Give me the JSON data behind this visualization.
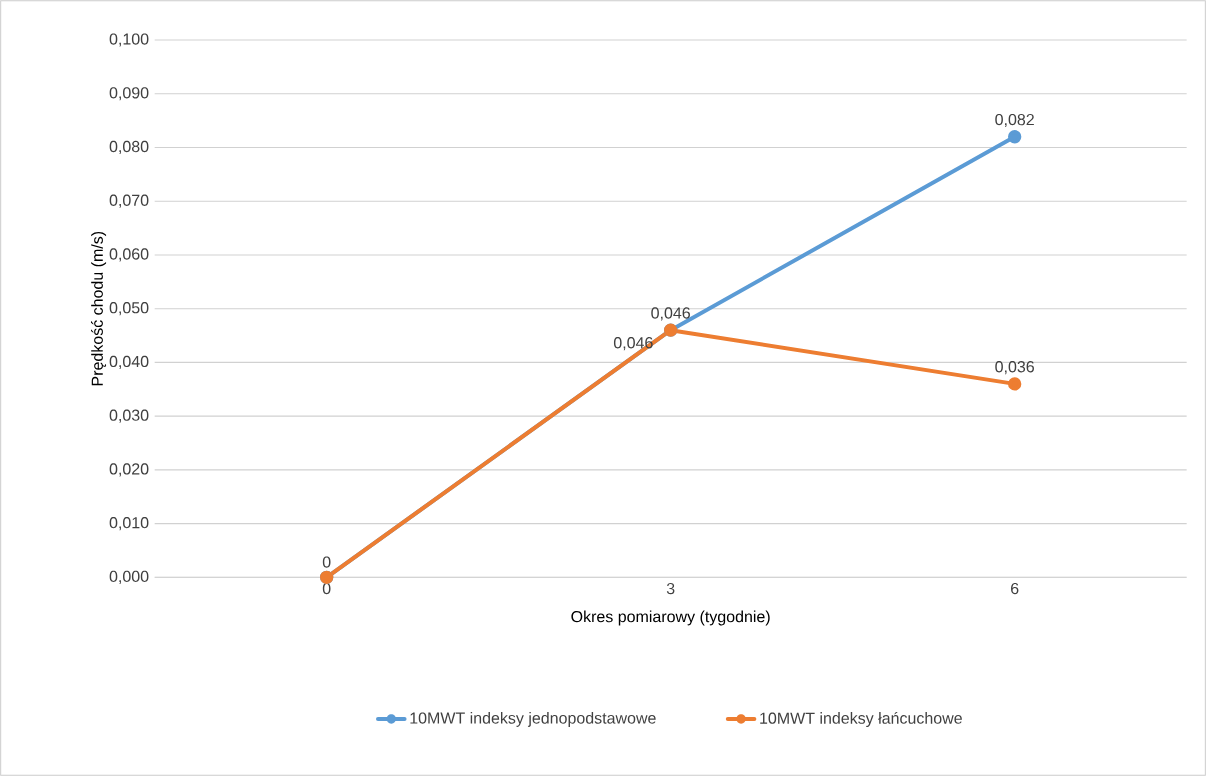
{
  "chart_data": {
    "type": "line",
    "xlabel": "Okres pomiarowy (tygodnie)",
    "ylabel": "Prędkość chodu (m/s)",
    "categories": [
      "0",
      "3",
      "6"
    ],
    "series": [
      {
        "name": "10MWT indeksy jednopodstawowe",
        "color": "#5b9bd5",
        "values": [
          0,
          0.046,
          0.082
        ],
        "value_labels": [
          "0",
          "0,046",
          "0,082"
        ]
      },
      {
        "name": "10MWT indeksy łańcuchowe",
        "color": "#ed7d31",
        "values": [
          0,
          0.046,
          0.036
        ],
        "value_labels": [
          null,
          "0,046",
          "0,036"
        ]
      }
    ],
    "ylim": [
      0,
      0.1
    ],
    "yticks": [
      {
        "value": 0,
        "label": "0,000"
      },
      {
        "value": 0.01,
        "label": "0,010"
      },
      {
        "value": 0.02,
        "label": "0,020"
      },
      {
        "value": 0.03,
        "label": "0,030"
      },
      {
        "value": 0.04,
        "label": "0,040"
      },
      {
        "value": 0.05,
        "label": "0,050"
      },
      {
        "value": 0.06,
        "label": "0,060"
      },
      {
        "value": 0.07,
        "label": "0,070"
      },
      {
        "value": 0.08,
        "label": "0,080"
      },
      {
        "value": 0.09,
        "label": "0,090"
      },
      {
        "value": 0.1,
        "label": "0,100"
      }
    ],
    "grid": "y",
    "legend": "bottom",
    "marker": "circle",
    "line_style": "solid"
  }
}
